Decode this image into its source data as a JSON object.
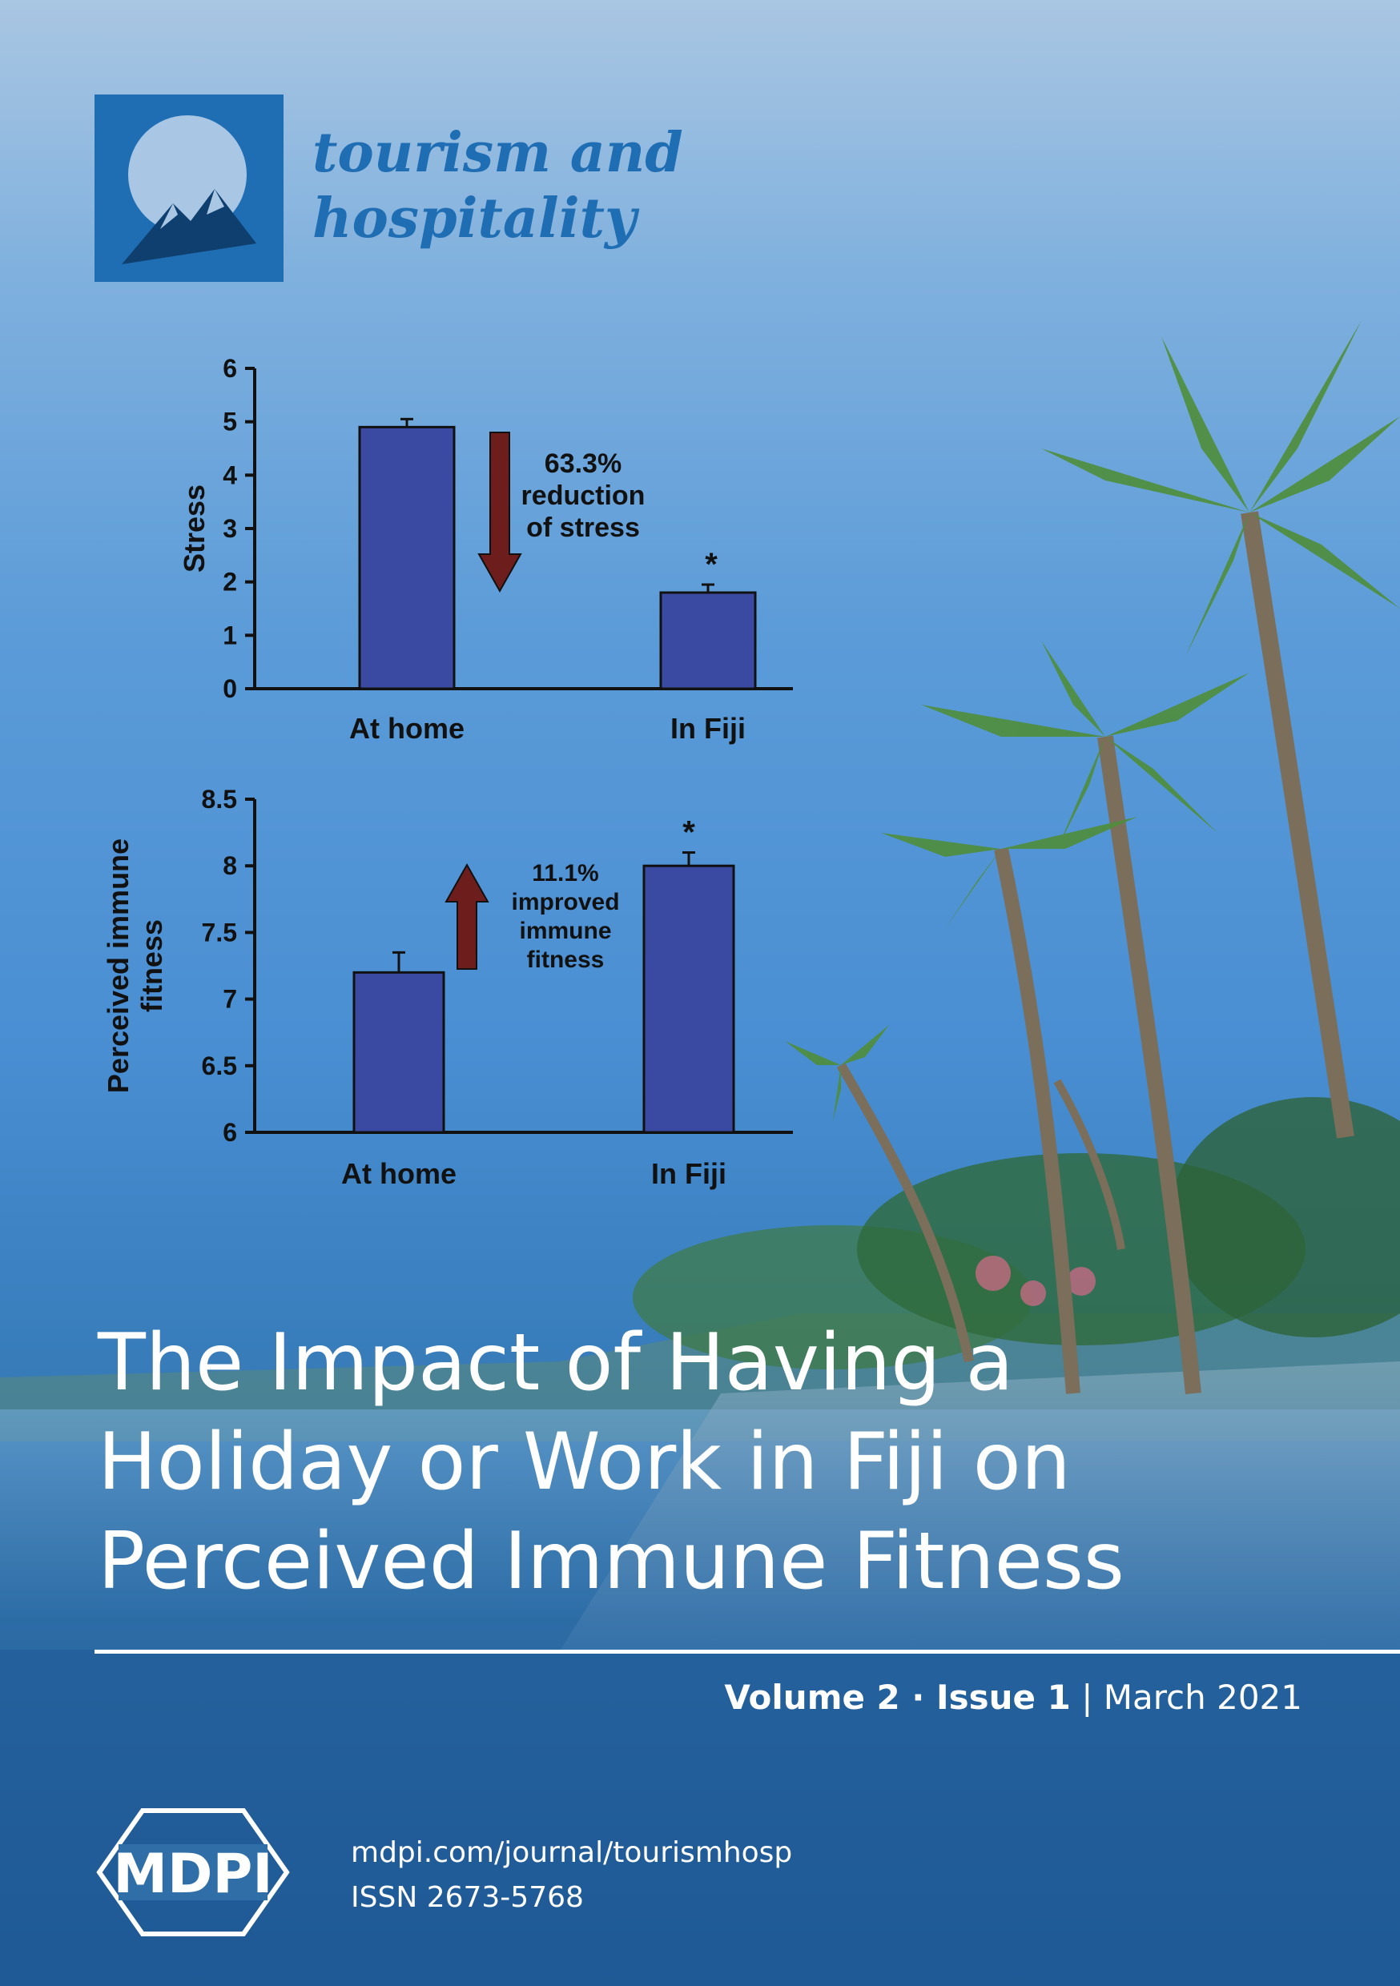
{
  "journal": {
    "name_line1": "tourism and",
    "name_line2": "hospitality"
  },
  "chart_data": [
    {
      "type": "bar",
      "categories": [
        "At home",
        "In Fiji"
      ],
      "values": [
        4.9,
        1.8
      ],
      "error": [
        0.15,
        0.15
      ],
      "ylabel": "Stress",
      "ylim": [
        0,
        6
      ],
      "yticks": [
        "0",
        "1",
        "2",
        "3",
        "4",
        "5",
        "6"
      ],
      "annotation": [
        "63.3%",
        "reduction",
        "of stress"
      ],
      "significance": [
        "",
        "*"
      ],
      "arrow": "down",
      "colors": {
        "bar": "#3a4aa3",
        "arrow": "#6e1d1d"
      }
    },
    {
      "type": "bar",
      "categories": [
        "At home",
        "In Fiji"
      ],
      "values": [
        7.2,
        8.0
      ],
      "error": [
        0.15,
        0.1
      ],
      "ylabel": [
        "Perceived immune",
        "fitness"
      ],
      "ylim": [
        6,
        8.5
      ],
      "yticks": [
        "6",
        "6.5",
        "7",
        "7.5",
        "8",
        "8.5"
      ],
      "annotation": [
        "11.1%",
        "improved",
        "immune",
        "fitness"
      ],
      "significance": [
        "",
        "*"
      ],
      "arrow": "up",
      "colors": {
        "bar": "#3a4aa3",
        "arrow": "#6e1d1d"
      }
    }
  ],
  "title": {
    "line1": "The Impact of Having a",
    "line2": "Holiday or Work in Fiji on",
    "line3": "Perceived Immune Fitness"
  },
  "issue": {
    "volume": "Volume 2",
    "sep": " · ",
    "issue": "Issue 1",
    "bar": " | ",
    "date": "March 2021"
  },
  "publisher": {
    "logo_text": "MDPI",
    "url": "mdpi.com/journal/tourismhosp",
    "issn": "ISSN 2673-5768"
  },
  "colors": {
    "brand": "#1f6eb4",
    "white": "#ffffff"
  }
}
